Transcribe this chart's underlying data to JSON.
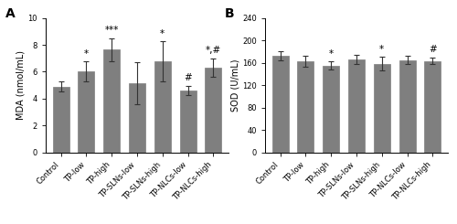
{
  "panel_A": {
    "title": "A",
    "ylabel": "MDA (nmol/mL)",
    "ylim": [
      0,
      10
    ],
    "yticks": [
      0,
      2,
      4,
      6,
      8,
      10
    ],
    "categories": [
      "Control",
      "TP-low",
      "TP-high",
      "TP-SLNs-low",
      "TP-SLNs-high",
      "TP-NLCs-low",
      "TP-NLCs-high"
    ],
    "values": [
      4.9,
      6.0,
      7.65,
      5.15,
      6.75,
      4.6,
      6.3
    ],
    "errors": [
      0.35,
      0.75,
      0.85,
      1.55,
      1.5,
      0.35,
      0.7
    ],
    "annotations": [
      "",
      "*",
      "***",
      "",
      "*",
      "#",
      "*,#"
    ],
    "bar_color": "#7f7f7f",
    "error_color": "#333333"
  },
  "panel_B": {
    "title": "B",
    "ylabel": "SOD (U/mL)",
    "ylim": [
      0,
      240
    ],
    "yticks": [
      0,
      40,
      80,
      120,
      160,
      200,
      240
    ],
    "categories": [
      "Control",
      "TP-low",
      "TP-high",
      "TP-SLNs-low",
      "TP-SLNs-high",
      "TP-NLCs-low",
      "TP-NLCs-high"
    ],
    "values": [
      172,
      162,
      155,
      166,
      158,
      165,
      163
    ],
    "errors": [
      8,
      10,
      7,
      8,
      12,
      8,
      6
    ],
    "annotations": [
      "",
      "",
      "*",
      "",
      "*",
      "",
      "#"
    ],
    "bar_color": "#7f7f7f",
    "error_color": "#333333"
  },
  "figure_bg": "#ffffff",
  "bar_width": 0.65,
  "label_fontsize": 7.0,
  "tick_fontsize": 6.0,
  "annot_fontsize": 7.5,
  "panel_label_fontsize": 10
}
